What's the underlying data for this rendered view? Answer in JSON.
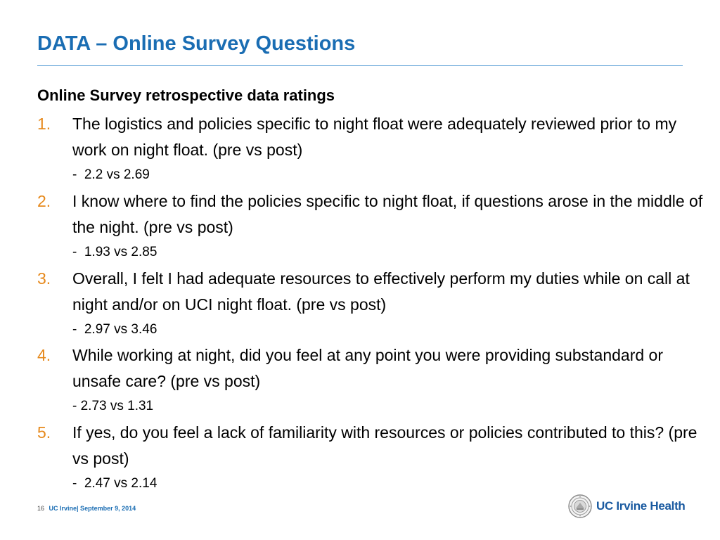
{
  "slide": {
    "title": "DATA – Online Survey Questions",
    "subtitle": "Online Survey retrospective data ratings",
    "items": [
      {
        "number": "1.",
        "question": "The logistics and policies specific to night float were adequately reviewed prior to my work on night float. (pre vs post)",
        "result": "-  2.2 vs 2.69"
      },
      {
        "number": "2.",
        "question": "I know where to find the policies specific to night float, if questions arose in the middle of the night. (pre vs post)",
        "result": "-  1.93 vs 2.85"
      },
      {
        "number": "3.",
        "question": "Overall, I felt I had adequate resources to effectively perform my duties while on call at night and/or on UCI night float. (pre vs post)",
        "result": "-  2.97 vs 3.46"
      },
      {
        "number": "4.",
        "question": "While working at night, did you feel at any point you were providing substandard or unsafe care? (pre vs post)",
        "result": "- 2.73 vs 1.31"
      },
      {
        "number": "5.",
        "question": "If yes, do you feel a lack of familiarity with resources or policies contributed to this? (pre vs post)",
        "result": "-  2.47 vs 2.14"
      }
    ]
  },
  "footer": {
    "page_number": "16",
    "text": "UC Irvine| September 9, 2014"
  },
  "logo": {
    "text": "UC Irvine Health",
    "icon": "university-seal-icon"
  },
  "colors": {
    "title": "#1a6db3",
    "rule": "#5a9fd6",
    "numbering": "#e6891c",
    "logo": "#1a5aa0"
  }
}
